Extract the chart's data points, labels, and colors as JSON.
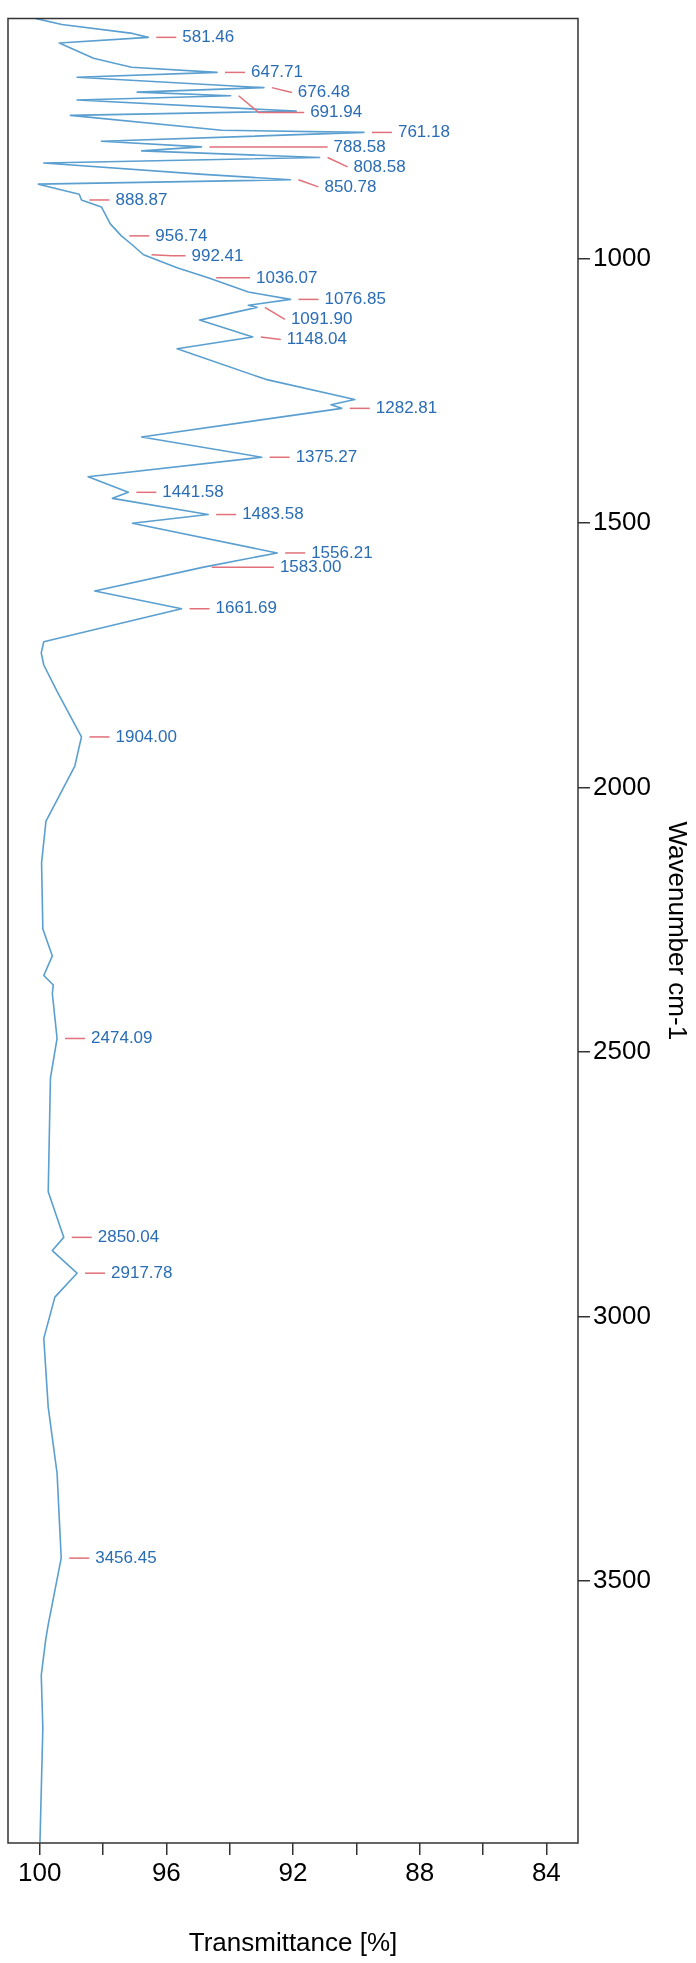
{
  "chart_data": {
    "type": "line",
    "xlabel": "Transmittance [%]",
    "ylabel": "Wavenumber cm-1",
    "color": "#5a9fd0",
    "marker": "none",
    "x": [
      100.1,
      99.3,
      97.07,
      96.57,
      99.38,
      98.3,
      97.1,
      94.4,
      98.82,
      92.92,
      96.92,
      93.97,
      98.82,
      91.9,
      99.03,
      94.25,
      89.76,
      98.05,
      94.89,
      96.78,
      91.16,
      99.87,
      94.95,
      92.08,
      100.04,
      98.75,
      98.68,
      98.05,
      97.77,
      97.42,
      97.07,
      96.72,
      95.66,
      94.68,
      93.41,
      92.08,
      93.41,
      93.14,
      94.95,
      93.27,
      95.66,
      92.86,
      90.05,
      90.8,
      90.46,
      96.78,
      92.99,
      98.47,
      97.2,
      97.7,
      94.68,
      97.07,
      92.5,
      94.82,
      98.26,
      95.52,
      99.87,
      99.95,
      99.87,
      99.45,
      98.68,
      98.89,
      99.8,
      99.94,
      99.9,
      99.6,
      99.87,
      99.57,
      99.6,
      99.45,
      99.66,
      99.73,
      99.24,
      99.6,
      98.82,
      99.52,
      99.87,
      99.73,
      99.45,
      99.32,
      99.73,
      99.81,
      99.95,
      99.9,
      99.99
    ],
    "values": [
      546,
      557,
      574,
      581.46,
      592,
      621,
      638,
      647.71,
      657,
      676.48,
      685,
      691.94,
      700,
      721,
      729,
      757,
      761.18,
      778,
      788.58,
      796,
      808.58,
      819,
      840,
      850.78,
      859,
      878,
      888.87,
      902,
      934,
      956.74,
      974,
      992.41,
      1017,
      1036.07,
      1063,
      1076.85,
      1088,
      1091.9,
      1116,
      1148.04,
      1170,
      1228,
      1266,
      1276,
      1282.81,
      1337,
      1375.27,
      1412,
      1441.58,
      1453,
      1483.58,
      1500,
      1556.21,
      1583,
      1628,
      1661.69,
      1724,
      1745,
      1768,
      1818,
      1904,
      1959,
      2063,
      2142,
      2267,
      2318,
      2355,
      2373,
      2389,
      2474.09,
      2549,
      2764,
      2850.04,
      2875,
      2917.78,
      2963,
      3041,
      3171,
      3296,
      3456.45,
      3582,
      3611,
      3678,
      3778,
      3992
    ],
    "xlim": [
      101,
      83
    ],
    "xticks": [
      {
        "value": 84,
        "label": "84"
      },
      {
        "value": 86,
        "label": null
      },
      {
        "value": 88,
        "label": "88"
      },
      {
        "value": 90,
        "label": null
      },
      {
        "value": 92,
        "label": "92"
      },
      {
        "value": 94,
        "label": null
      },
      {
        "value": 96,
        "label": "96"
      },
      {
        "value": 98,
        "label": null
      },
      {
        "value": 100,
        "label": "100"
      }
    ],
    "ylim": [
      3995,
      546
    ],
    "yticks": [
      1000,
      1500,
      2000,
      2500,
      3000,
      3500
    ],
    "annotations": [
      {
        "text": "581.46",
        "x": 96.57,
        "y": 581.46
      },
      {
        "text": "647.71",
        "x": 94.4,
        "y": 647.71
      },
      {
        "text": "676.48",
        "x": 92.92,
        "y": 676.48
      },
      {
        "text": "691.94",
        "x": 93.97,
        "y": 691.94
      },
      {
        "text": "761.18",
        "x": 89.76,
        "y": 761.18
      },
      {
        "text": "788.58",
        "x": 94.89,
        "y": 788.58
      },
      {
        "text": "808.58",
        "x": 91.16,
        "y": 808.58
      },
      {
        "text": "850.78",
        "x": 92.08,
        "y": 850.78
      },
      {
        "text": "888.87",
        "x": 98.68,
        "y": 888.87
      },
      {
        "text": "956.74",
        "x": 97.42,
        "y": 956.74
      },
      {
        "text": "992.41",
        "x": 96.72,
        "y": 992.41
      },
      {
        "text": "1036.07",
        "x": 94.68,
        "y": 1036.07
      },
      {
        "text": "1076.85",
        "x": 92.08,
        "y": 1076.85
      },
      {
        "text": "1091.90",
        "x": 93.14,
        "y": 1091.9
      },
      {
        "text": "1148.04",
        "x": 93.27,
        "y": 1148.04
      },
      {
        "text": "1282.81",
        "x": 90.46,
        "y": 1282.81
      },
      {
        "text": "1375.27",
        "x": 92.99,
        "y": 1375.27
      },
      {
        "text": "1441.58",
        "x": 97.2,
        "y": 1441.58
      },
      {
        "text": "1483.58",
        "x": 94.68,
        "y": 1483.58
      },
      {
        "text": "1556.21",
        "x": 92.5,
        "y": 1556.21
      },
      {
        "text": "1583.00",
        "x": 94.82,
        "y": 1583
      },
      {
        "text": "1661.69",
        "x": 95.52,
        "y": 1661.69
      },
      {
        "text": "1904.00",
        "x": 98.68,
        "y": 1904
      },
      {
        "text": "2474.09",
        "x": 99.45,
        "y": 2474.09
      },
      {
        "text": "2850.04",
        "x": 99.24,
        "y": 2850.04
      },
      {
        "text": "2917.78",
        "x": 98.82,
        "y": 2917.78
      },
      {
        "text": "3456.45",
        "x": 99.32,
        "y": 3456.45
      }
    ]
  }
}
